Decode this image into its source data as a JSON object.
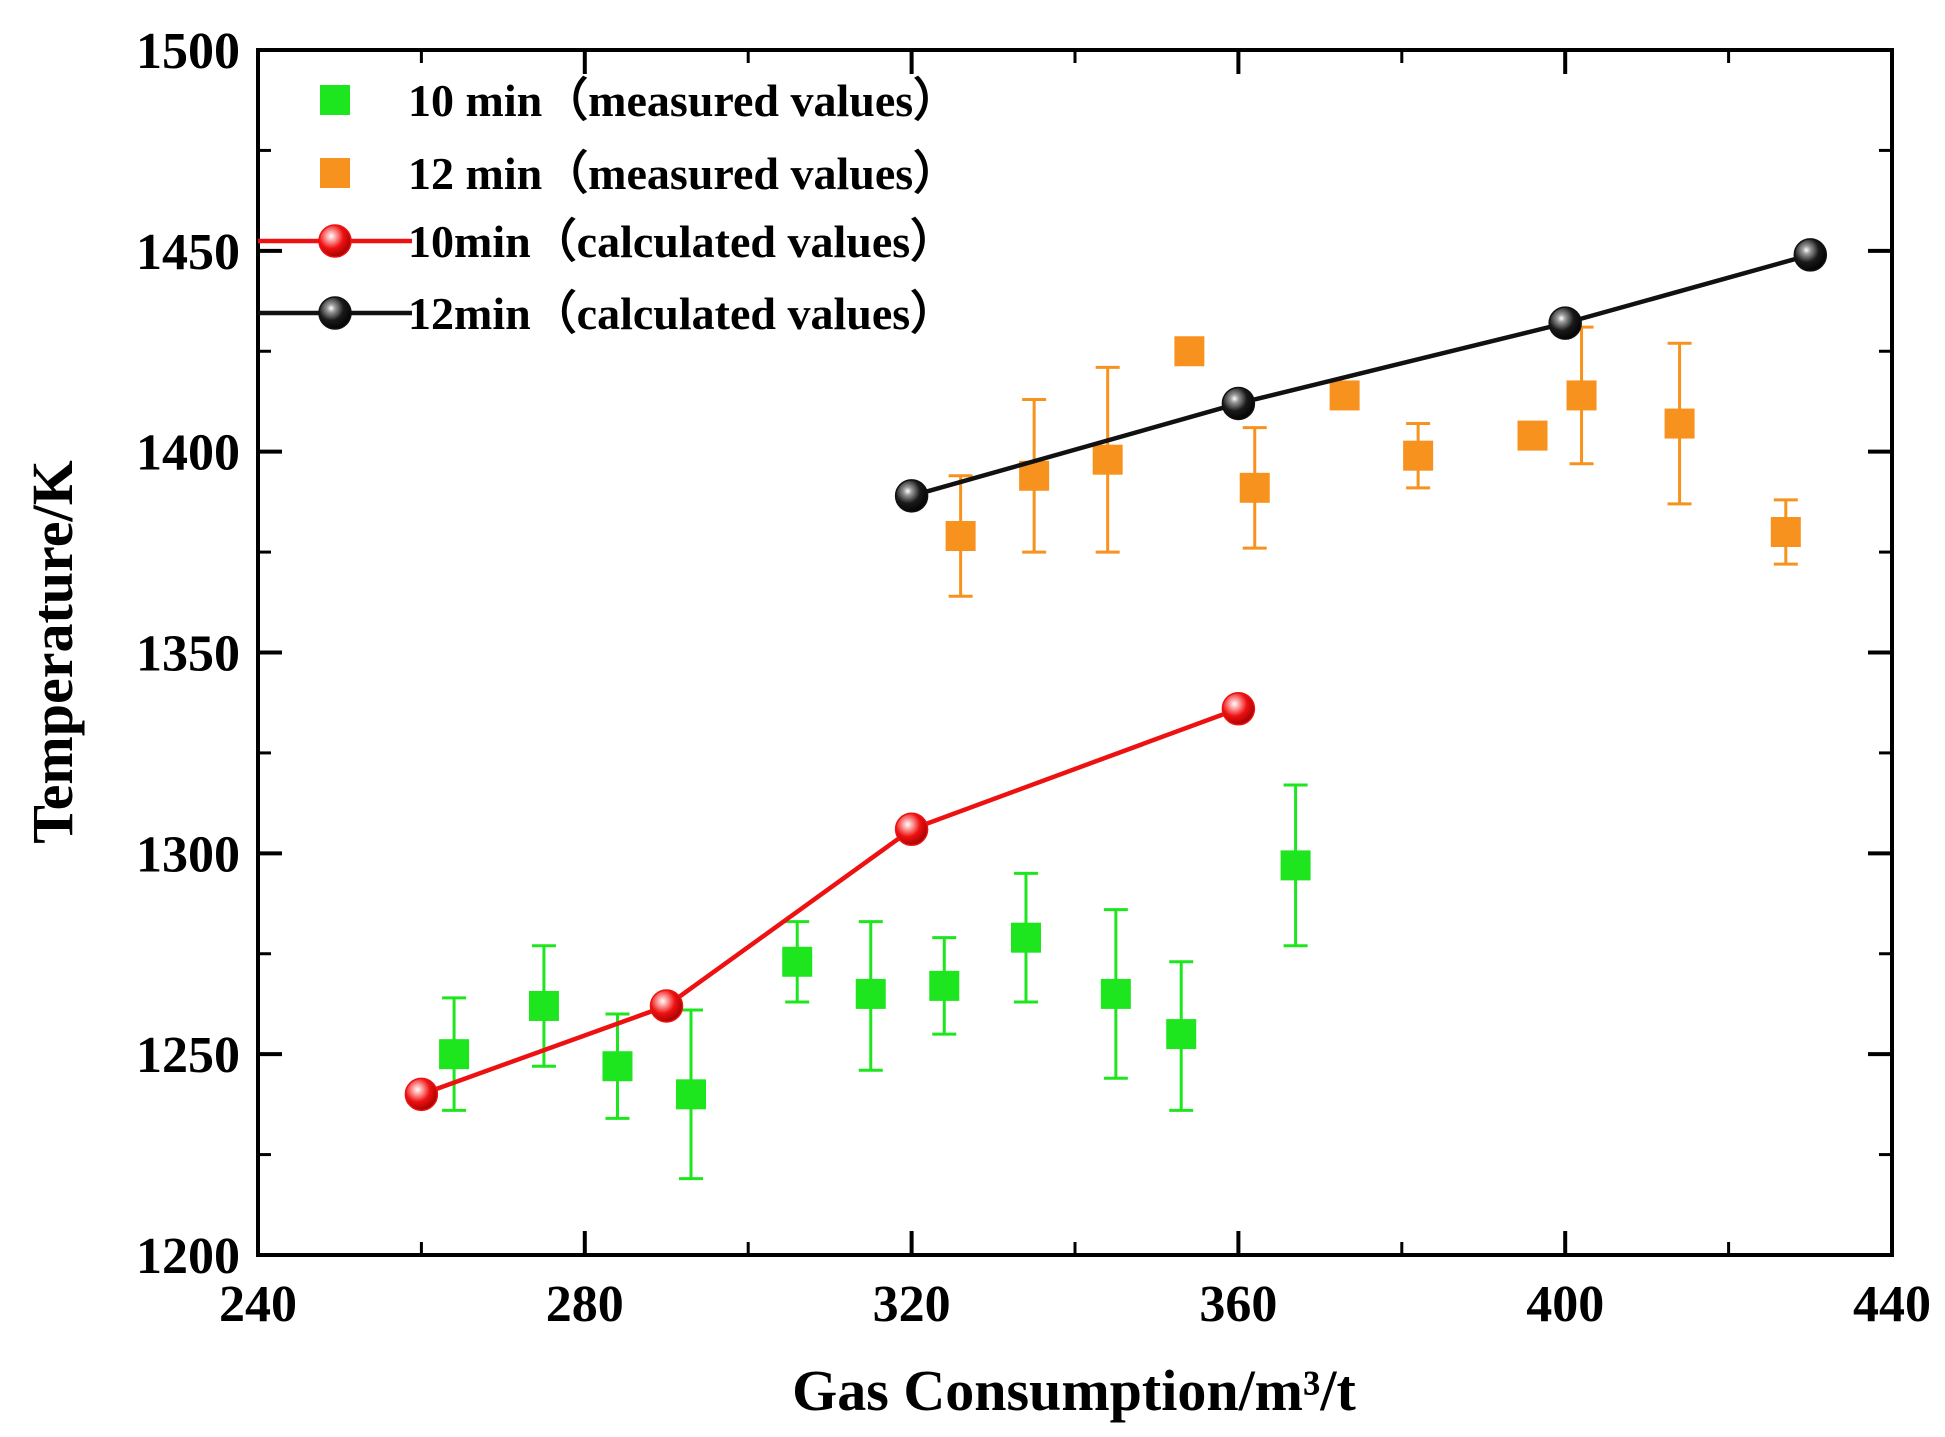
{
  "chart_data": {
    "type": "scatter",
    "title": "",
    "xlabel": "Gas Consumption/m³/t",
    "ylabel": "Temperature/K",
    "xlim": [
      240,
      440
    ],
    "ylim": [
      1200,
      1500
    ],
    "xticks": [
      240,
      280,
      320,
      360,
      400,
      440
    ],
    "xtick_labels": [
      "240",
      "280",
      "320",
      "360",
      "400",
      "440"
    ],
    "yticks": [
      1200,
      1250,
      1300,
      1350,
      1400,
      1450,
      1500
    ],
    "ytick_labels": [
      "1200",
      "1250",
      "1300",
      "1350",
      "1400",
      "1450",
      "1500"
    ],
    "grid": false,
    "legend_position": "top-left",
    "series": [
      {
        "name": "10 min（measured values）",
        "kind": "measured",
        "marker": "square",
        "color": "#1ee61e",
        "points": [
          {
            "x": 264,
            "y": 1250,
            "err_lo": 14,
            "err_hi": 14
          },
          {
            "x": 275,
            "y": 1262,
            "err_lo": 15,
            "err_hi": 15
          },
          {
            "x": 284,
            "y": 1247,
            "err_lo": 13,
            "err_hi": 13
          },
          {
            "x": 293,
            "y": 1240,
            "err_lo": 21,
            "err_hi": 21
          },
          {
            "x": 306,
            "y": 1273,
            "err_lo": 10,
            "err_hi": 10
          },
          {
            "x": 315,
            "y": 1265,
            "err_lo": 19,
            "err_hi": 18
          },
          {
            "x": 324,
            "y": 1267,
            "err_lo": 12,
            "err_hi": 12
          },
          {
            "x": 334,
            "y": 1279,
            "err_lo": 16,
            "err_hi": 16
          },
          {
            "x": 345,
            "y": 1265,
            "err_lo": 21,
            "err_hi": 21
          },
          {
            "x": 353,
            "y": 1255,
            "err_lo": 19,
            "err_hi": 18
          },
          {
            "x": 367,
            "y": 1297,
            "err_lo": 20,
            "err_hi": 20
          }
        ]
      },
      {
        "name": "12 min（measured values）",
        "kind": "measured",
        "marker": "square",
        "color": "#f7921e",
        "points": [
          {
            "x": 326,
            "y": 1379,
            "err_lo": 15,
            "err_hi": 15
          },
          {
            "x": 335,
            "y": 1394,
            "err_lo": 19,
            "err_hi": 19
          },
          {
            "x": 344,
            "y": 1398,
            "err_lo": 23,
            "err_hi": 23
          },
          {
            "x": 354,
            "y": 1425,
            "err_lo": 0,
            "err_hi": 0
          },
          {
            "x": 362,
            "y": 1391,
            "err_lo": 15,
            "err_hi": 15
          },
          {
            "x": 373,
            "y": 1414,
            "err_lo": 0,
            "err_hi": 0
          },
          {
            "x": 382,
            "y": 1399,
            "err_lo": 8,
            "err_hi": 8
          },
          {
            "x": 396,
            "y": 1404,
            "err_lo": 0,
            "err_hi": 0
          },
          {
            "x": 402,
            "y": 1414,
            "err_lo": 17,
            "err_hi": 17
          },
          {
            "x": 414,
            "y": 1407,
            "err_lo": 20,
            "err_hi": 20
          },
          {
            "x": 427,
            "y": 1380,
            "err_lo": 8,
            "err_hi": 8
          }
        ]
      },
      {
        "name": "10min（calculated values）",
        "kind": "calculated",
        "marker": "circle",
        "color": "#ee1111",
        "points": [
          {
            "x": 260,
            "y": 1240
          },
          {
            "x": 290,
            "y": 1262
          },
          {
            "x": 320,
            "y": 1306
          },
          {
            "x": 360,
            "y": 1336
          }
        ]
      },
      {
        "name": "12min（calculated values）",
        "kind": "calculated",
        "marker": "circle",
        "color": "#111111",
        "points": [
          {
            "x": 320,
            "y": 1389
          },
          {
            "x": 360,
            "y": 1412
          },
          {
            "x": 400,
            "y": 1432
          },
          {
            "x": 430,
            "y": 1449
          }
        ]
      }
    ]
  }
}
